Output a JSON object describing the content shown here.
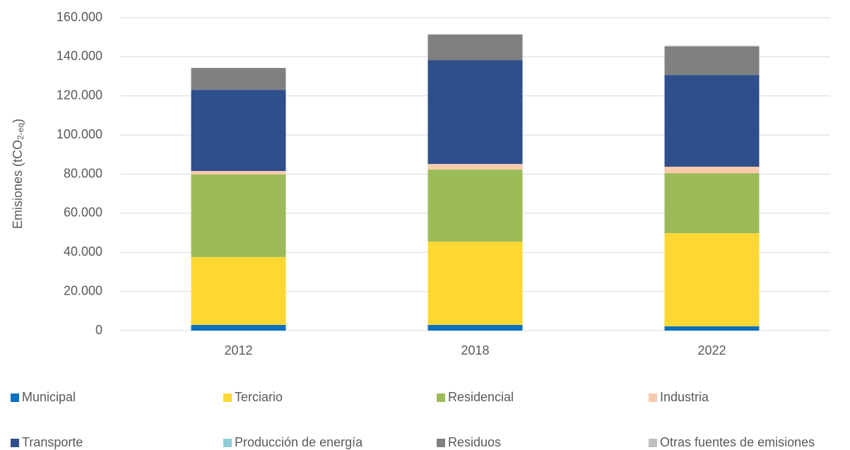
{
  "chart_data": {
    "type": "stacked_bar",
    "y_label": {
      "text": "Emisiones (tCO",
      "sub": "2-eq",
      "end": ")"
    },
    "categories": [
      "2012",
      "2018",
      "2022"
    ],
    "series": [
      {
        "name": "Municipal",
        "color": "#0a70c0",
        "values": [
          2900,
          2900,
          2200
        ]
      },
      {
        "name": "Terciario",
        "color": "#ffd733",
        "values": [
          34700,
          42600,
          47600
        ]
      },
      {
        "name": "Residencial",
        "color": "#9bbb59",
        "values": [
          42200,
          36800,
          30700
        ]
      },
      {
        "name": "Industria",
        "color": "#f8cbad",
        "values": [
          1800,
          2900,
          3300
        ]
      },
      {
        "name": "Transporte",
        "color": "#2e4f8c",
        "values": [
          41500,
          53100,
          46900
        ]
      },
      {
        "name": "Producción de energía",
        "color": "#8ecbd8",
        "values": [
          0,
          0,
          0
        ]
      },
      {
        "name": "Residuos",
        "color": "#808080",
        "values": [
          11200,
          13000,
          14500
        ]
      },
      {
        "name": "Otras fuentes de emisiones",
        "color": "#bfbfbf",
        "values": [
          0,
          300,
          500
        ]
      }
    ],
    "ylim": [
      0,
      160000
    ],
    "yticks": [
      0,
      {
        "value": 20000,
        "label": "20.000"
      },
      {
        "value": 40000,
        "label": "40.000"
      },
      {
        "value": 60000,
        "label": "60.000"
      },
      {
        "value": 80000,
        "label": "80.000"
      },
      {
        "value": 100000,
        "label": "100.000"
      },
      {
        "value": 120000,
        "label": "120.000"
      },
      {
        "value": 140000,
        "label": "140.000"
      },
      {
        "value": 160000,
        "label": "160.000"
      }
    ],
    "grid": true,
    "legend": "bottom"
  }
}
